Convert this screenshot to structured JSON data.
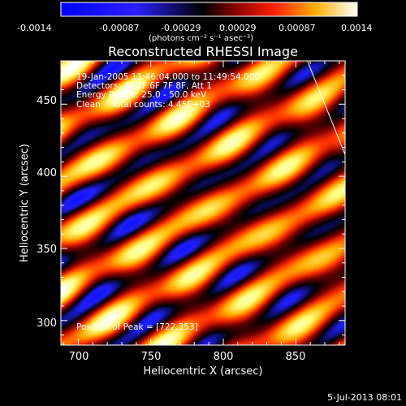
{
  "chart_data": [
    {
      "type": "colorbar",
      "ticks": [
        "-0.0014",
        "-0.00087",
        "-0.00029",
        "0.00029",
        "0.00087",
        "0.0014"
      ],
      "range": [
        -0.0014,
        0.0014
      ],
      "unit_label": "(photons cm⁻² s⁻¹ asec⁻²)",
      "colormap": [
        "#0000ff",
        "#2020ff",
        "#000000",
        "#7f0000",
        "#ff3000",
        "#ffb000",
        "#ffff80",
        "#ffffff"
      ]
    },
    {
      "type": "heatmap",
      "title": "Reconstructed RHESSI Image",
      "xlabel": "Heliocentric X (arcsec)",
      "ylabel": "Heliocentric Y (arcsec)",
      "xticks": [
        "700",
        "750",
        "800",
        "850"
      ],
      "yticks": [
        "300",
        "350",
        "400",
        "450"
      ],
      "xlim": [
        688,
        884
      ],
      "ylim": [
        283,
        480
      ],
      "info_lines": [
        "19-Jan-2005 11:46:04.000 to 11:49:54.000",
        "Detectors: 4F 5F 6F 7F 8F, Att 1",
        "Energy Range: 25.0 - 50.0 keV",
        "Clean    Total counts: 4.45E+03"
      ],
      "peak_label": "Position of Peak = [722,353]",
      "peak_position": [
        722,
        353
      ],
      "limb_line": [
        [
          858,
          480
        ],
        [
          884,
          415
        ]
      ]
    }
  ],
  "footer": {
    "date": "5-Jul-2013 08:01"
  }
}
